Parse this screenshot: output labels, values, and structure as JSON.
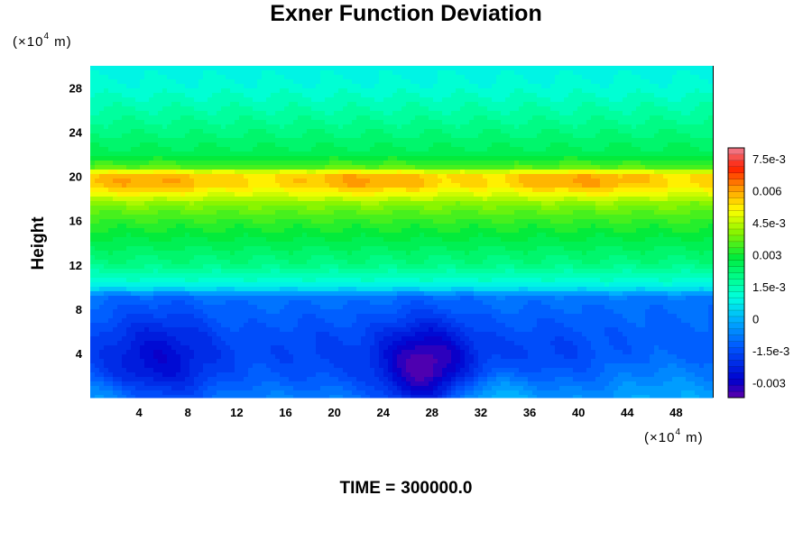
{
  "chart_data": {
    "type": "heatmap",
    "title": "Exner Function Deviation",
    "ylabel": "Height",
    "xlabel": "",
    "x_unit_prefix": "(×10",
    "x_unit_exp": "4",
    "x_unit_suffix": " m)",
    "y_unit_prefix": "(×10",
    "y_unit_exp": "4",
    "y_unit_suffix": " m)",
    "xlim": [
      0,
      51
    ],
    "ylim": [
      0,
      30
    ],
    "x_ticks": [
      4,
      8,
      12,
      16,
      20,
      24,
      28,
      32,
      36,
      40,
      44,
      48
    ],
    "y_ticks": [
      4,
      8,
      12,
      16,
      20,
      24,
      28
    ],
    "colorbar": {
      "min": -0.0037,
      "max": 0.008,
      "ticks": [
        {
          "value": 0.0075,
          "label": "7.5e-3"
        },
        {
          "value": 0.006,
          "label": "0.006"
        },
        {
          "value": 0.0045,
          "label": "4.5e-3"
        },
        {
          "value": 0.003,
          "label": "0.003"
        },
        {
          "value": 0.0015,
          "label": "1.5e-3"
        },
        {
          "value": 0,
          "label": "0"
        },
        {
          "value": -0.0015,
          "label": "-1.5e-3"
        },
        {
          "value": -0.003,
          "label": "-0.003"
        }
      ]
    },
    "profile_by_height": [
      [
        0,
        -0.0006
      ],
      [
        2,
        -0.0011
      ],
      [
        4,
        -0.0013
      ],
      [
        6,
        -0.0012
      ],
      [
        8,
        -0.001
      ],
      [
        9.2,
        -0.0008
      ],
      [
        9.7,
        0.0004
      ],
      [
        10.5,
        0.0011
      ],
      [
        12,
        0.002
      ],
      [
        14,
        0.0026
      ],
      [
        16,
        0.0033
      ],
      [
        17.5,
        0.004
      ],
      [
        18.5,
        0.005
      ],
      [
        19.3,
        0.0057
      ],
      [
        20.2,
        0.0056
      ],
      [
        20.8,
        0.0036
      ],
      [
        22,
        0.0026
      ],
      [
        24,
        0.0021
      ],
      [
        26,
        0.0016
      ],
      [
        28,
        0.0011
      ],
      [
        30,
        0.0008
      ]
    ],
    "low_centers": [
      {
        "x": 5.6,
        "y": 3.0,
        "amp": -0.0015,
        "sx": 3.5,
        "sy": 3.5
      },
      {
        "x": 27.5,
        "y": 2.4,
        "amp": -0.0025,
        "sx": 2.8,
        "sy": 3.2
      },
      {
        "x": 18.5,
        "y": 4.0,
        "amp": -0.0004,
        "sx": 3.5,
        "sy": 3.0
      },
      {
        "x": 37.5,
        "y": 4.0,
        "amp": -0.0004,
        "sx": 3.5,
        "sy": 2.5
      }
    ],
    "high_spots": [
      {
        "x": 32.5,
        "y": 0.3,
        "amp": 0.0009,
        "sx": 3.0,
        "sy": 1.4
      },
      {
        "x": 1.5,
        "y": 0.3,
        "amp": 0.0005,
        "sx": 2.5,
        "sy": 1.0
      },
      {
        "x": 47.0,
        "y": 1.0,
        "amp": 0.0005,
        "sx": 4.0,
        "sy": 2.0
      }
    ]
  },
  "footer": {
    "time_label": "TIME =",
    "time_value": "300000.0"
  }
}
